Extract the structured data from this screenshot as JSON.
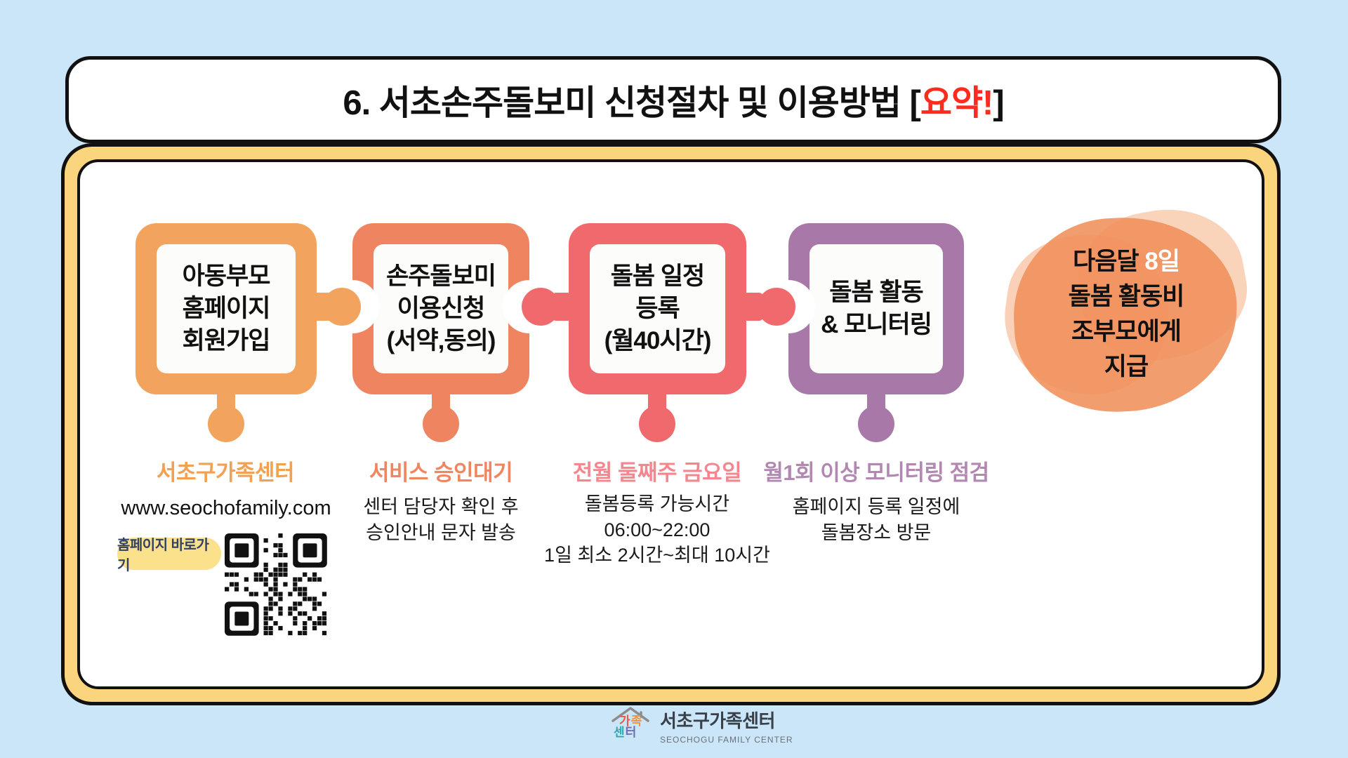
{
  "title": {
    "prefix": "6. 서초손주돌보미 신청절차 및 이용방법 [",
    "highlight": "요약!",
    "suffix": "]"
  },
  "steps": [
    {
      "label_lines": [
        "아동부모",
        "홈페이지",
        "회원가입"
      ],
      "caption": "서초구가족센터",
      "url": "www.seochofamily.com",
      "link_button": "홈페이지 바로가기",
      "color": "#F2A45E",
      "caption_color": "#F2A052"
    },
    {
      "label_lines": [
        "손주돌보미",
        "이용신청",
        "(서약,동의)"
      ],
      "caption": "서비스 승인대기",
      "note_lines": [
        "센터 담당자 확인 후",
        "승인안내 문자 발송"
      ],
      "color": "#EF8560",
      "caption_color": "#EF8660"
    },
    {
      "label_lines": [
        "돌봄 일정",
        "등록",
        "(월40시간)"
      ],
      "caption": "전월 둘째주 금요일",
      "note_lines": [
        "돌봄등록 가능시간",
        "06:00~22:00",
        "1일 최소 2시간~최대 10시간"
      ],
      "color": "#F0696C",
      "caption_color": "#F4868F"
    },
    {
      "label_lines": [
        "돌봄 활동",
        "& 모니터링"
      ],
      "caption": "월1회 이상 모니터링 점검",
      "note_lines": [
        "홈페이지 등록 일정에",
        "돌봄장소 방문"
      ],
      "color": "#A879A8",
      "caption_color": "#B287B2"
    }
  ],
  "payout": {
    "line1_black": "다음달 ",
    "line1_white": "8일",
    "lines": [
      "돌봄 활동비",
      "조부모에게",
      "지급"
    ],
    "blob_color": "#F0905A"
  },
  "footer": {
    "logo_char_ga": "가",
    "logo_char_jok": "족",
    "logo_char_sen": "센",
    "logo_char_teo": "터",
    "org_name": "서초구가족센터",
    "org_name_en": "SEOCHOGU FAMILY CENTER"
  },
  "colors": {
    "background_blue": "#CBE6F8",
    "panel_yellow": "#FBD47E",
    "accent_red": "#FF2B1E",
    "button_yellow": "#FBE18C",
    "button_text_navy": "#344063"
  }
}
